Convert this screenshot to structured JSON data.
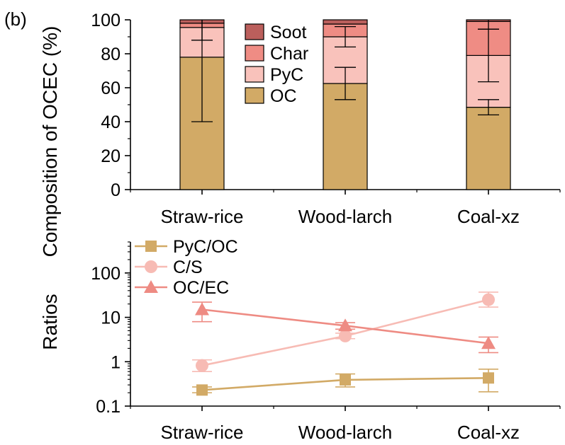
{
  "panel_label": "(b)",
  "colors": {
    "soot": "#bb5f5c",
    "char": "#ef8c84",
    "pyc": "#f9c2bb",
    "oc": "#d2aa66",
    "ratio_pyc_oc": "#d2aa66",
    "ratio_c_s": "#f7bbb4",
    "ratio_oc_ec": "#ee8b83"
  },
  "chart_data": [
    {
      "type": "bar",
      "stacked": true,
      "ylabel": "Composition of OCEC (%)",
      "ylim": [
        0,
        100
      ],
      "yticks": [
        0,
        20,
        40,
        60,
        80,
        100
      ],
      "categories": [
        "Straw-rice",
        "Wood-larch",
        "Coal-xz"
      ],
      "legend_position": "top-center",
      "series": [
        {
          "name": "OC",
          "key": "oc",
          "values": [
            78,
            62.5,
            48.5
          ],
          "errors": [
            38,
            9.5,
            4.5
          ]
        },
        {
          "name": "PyC",
          "key": "pyc",
          "values": [
            17.5,
            27.5,
            30.5
          ],
          "errors": [
            7.5,
            6,
            15.5
          ]
        },
        {
          "name": "Char",
          "key": "char",
          "values": [
            2.5,
            7.5,
            20
          ],
          "errors": [
            0,
            0,
            4.5
          ]
        },
        {
          "name": "Soot",
          "key": "soot",
          "values": [
            2,
            2.5,
            1
          ],
          "errors": [
            0,
            0,
            0
          ]
        }
      ],
      "legend_order": [
        "Soot",
        "Char",
        "PyC",
        "OC"
      ]
    },
    {
      "type": "line",
      "yscale": "log",
      "ylabel": "Ratios",
      "ylim": [
        0.1,
        500
      ],
      "yticks": [
        0.1,
        1,
        10,
        100
      ],
      "ytick_labels": [
        "0.1",
        "1",
        "10",
        "100"
      ],
      "categories": [
        "Straw-rice",
        "Wood-larch",
        "Coal-xz"
      ],
      "legend_position": "top-left",
      "series": [
        {
          "name": "PyC/OC",
          "marker": "square",
          "key": "ratio_pyc_oc",
          "values": [
            0.23,
            0.39,
            0.43
          ],
          "err_low": [
            0.2,
            0.27,
            0.21
          ],
          "err_high": [
            0.27,
            0.53,
            0.68
          ]
        },
        {
          "name": "C/S",
          "marker": "circle",
          "key": "ratio_c_s",
          "values": [
            0.82,
            3.8,
            25
          ],
          "err_low": [
            0.6,
            3.3,
            17
          ],
          "err_high": [
            1.1,
            4.4,
            37
          ]
        },
        {
          "name": "OC/EC",
          "marker": "triangle",
          "key": "ratio_oc_ec",
          "values": [
            15,
            6.5,
            2.6
          ],
          "err_low": [
            8,
            5.4,
            1.6
          ],
          "err_high": [
            22,
            7.6,
            3.6
          ]
        }
      ]
    }
  ]
}
